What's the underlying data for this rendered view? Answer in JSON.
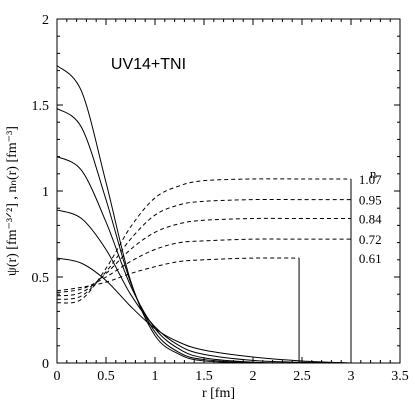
{
  "chart_data": {
    "type": "line",
    "title": "UV14+TNI",
    "xlabel": "r  [fm]",
    "ylabel": "ψ(r) [fm⁻³ᐟ²]  ,  nₙ(r) [fm⁻³]",
    "xlim": [
      0,
      3.5
    ],
    "ylim": [
      0,
      2
    ],
    "xticks": [
      "0",
      "0.5",
      "1",
      "1.5",
      "2",
      "2.5",
      "3",
      "3.5"
    ],
    "yticks": [
      "0",
      "0.5",
      "1",
      "1.5",
      "2"
    ],
    "legend_header": "n",
    "densities": [
      "1.07",
      "0.95",
      "0.84",
      "0.72",
      "0.61"
    ],
    "grid": false,
    "series": [
      {
        "line": "solid",
        "x": [
          0,
          0.25,
          0.5,
          0.75,
          1,
          1.25,
          1.5,
          2,
          2.5,
          3
        ],
        "y": [
          0.61,
          0.58,
          0.48,
          0.33,
          0.2,
          0.12,
          0.075,
          0.035,
          0.012,
          0.0
        ]
      },
      {
        "line": "solid",
        "x": [
          0,
          0.25,
          0.5,
          0.75,
          1,
          1.25,
          1.5,
          2,
          2.5,
          3
        ],
        "y": [
          0.89,
          0.84,
          0.66,
          0.4,
          0.21,
          0.1,
          0.05,
          0.015,
          0.004,
          0.0
        ]
      },
      {
        "line": "solid",
        "x": [
          0,
          0.25,
          0.5,
          0.75,
          1,
          1.25,
          1.5,
          2,
          2.5,
          3
        ],
        "y": [
          1.2,
          1.12,
          0.82,
          0.45,
          0.2,
          0.08,
          0.03,
          0.005,
          0.001,
          0.0
        ]
      },
      {
        "line": "solid",
        "x": [
          0,
          0.25,
          0.5,
          0.75,
          1,
          1.25,
          1.5,
          2,
          2.5,
          3
        ],
        "y": [
          1.48,
          1.37,
          0.95,
          0.47,
          0.18,
          0.06,
          0.02,
          0.002,
          0.0,
          0.0
        ]
      },
      {
        "line": "solid",
        "x": [
          0,
          0.25,
          0.5,
          0.75,
          1,
          1.25,
          1.5,
          2,
          2.5,
          3
        ],
        "y": [
          1.73,
          1.58,
          1.05,
          0.48,
          0.16,
          0.05,
          0.012,
          0.001,
          0.0,
          0.0
        ]
      },
      {
        "line": "dashed",
        "x": [
          0,
          0.25,
          0.5,
          0.75,
          1,
          1.25,
          1.5,
          2,
          2.47
        ],
        "y": [
          0.42,
          0.44,
          0.47,
          0.52,
          0.56,
          0.59,
          0.6,
          0.61,
          0.61
        ],
        "drop_to_zero_at": 2.47
      },
      {
        "line": "dashed",
        "x": [
          0,
          0.25,
          0.5,
          0.75,
          1,
          1.25,
          1.5,
          2,
          2.5,
          3
        ],
        "y": [
          0.41,
          0.43,
          0.5,
          0.59,
          0.66,
          0.7,
          0.71,
          0.72,
          0.72,
          0.72
        ],
        "drop_to_zero_at": 3
      },
      {
        "line": "dashed",
        "x": [
          0,
          0.25,
          0.5,
          0.75,
          1,
          1.25,
          1.5,
          2,
          2.5,
          3
        ],
        "y": [
          0.39,
          0.41,
          0.52,
          0.66,
          0.76,
          0.81,
          0.83,
          0.84,
          0.84,
          0.84
        ],
        "drop_to_zero_at": 3
      },
      {
        "line": "dashed",
        "x": [
          0,
          0.25,
          0.5,
          0.75,
          1,
          1.25,
          1.5,
          2,
          2.5,
          3
        ],
        "y": [
          0.37,
          0.39,
          0.53,
          0.72,
          0.86,
          0.92,
          0.94,
          0.95,
          0.95,
          0.95
        ],
        "drop_to_zero_at": 3
      },
      {
        "line": "dashed",
        "x": [
          0,
          0.25,
          0.5,
          0.75,
          1,
          1.25,
          1.5,
          2,
          2.5,
          3
        ],
        "y": [
          0.35,
          0.37,
          0.55,
          0.79,
          0.96,
          1.03,
          1.06,
          1.07,
          1.07,
          1.07
        ],
        "drop_to_zero_at": 3
      }
    ]
  }
}
